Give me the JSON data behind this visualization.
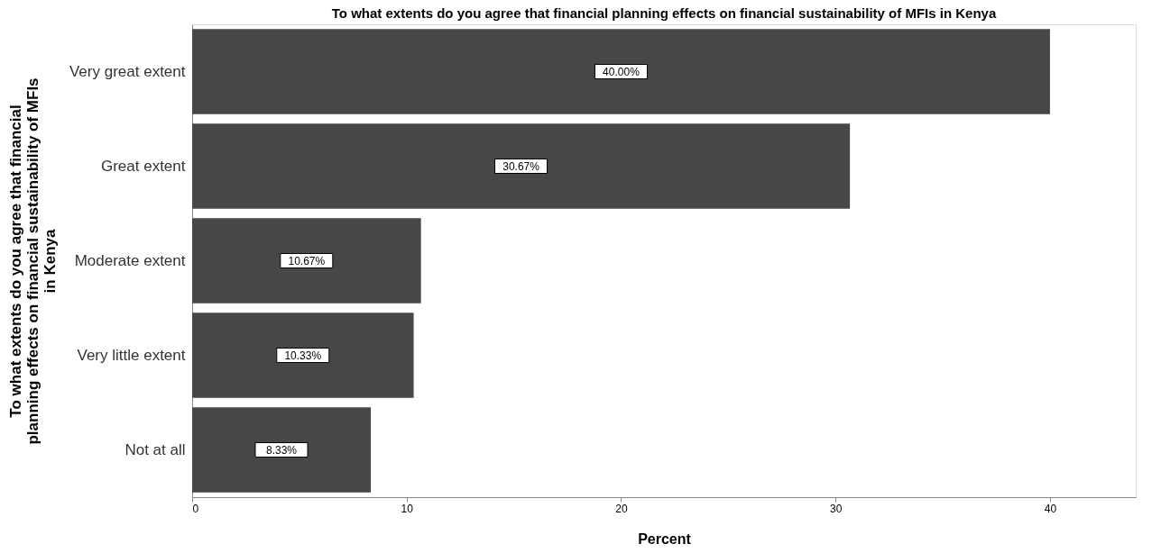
{
  "chart_data": {
    "type": "bar",
    "orientation": "horizontal",
    "title": "To what extents do you agree that financial planning effects on financial sustainability of MFIs in Kenya",
    "xlabel": "Percent",
    "ylabel": "To what extents do you agree that financial\nplanning effects on financial sustainability of MFIs\nin Kenya",
    "categories": [
      "Very great extent",
      "Great extent",
      "Moderate extent",
      "Very little extent",
      "Not at all"
    ],
    "values": [
      40.0,
      30.67,
      10.67,
      10.33,
      8.33
    ],
    "value_labels": [
      "40.00%",
      "30.67%",
      "10.67%",
      "10.33%",
      "8.33%"
    ],
    "color": "#474747",
    "xlim": [
      0,
      44
    ],
    "xticks": [
      0,
      10,
      20,
      30,
      40
    ],
    "grid": false
  }
}
